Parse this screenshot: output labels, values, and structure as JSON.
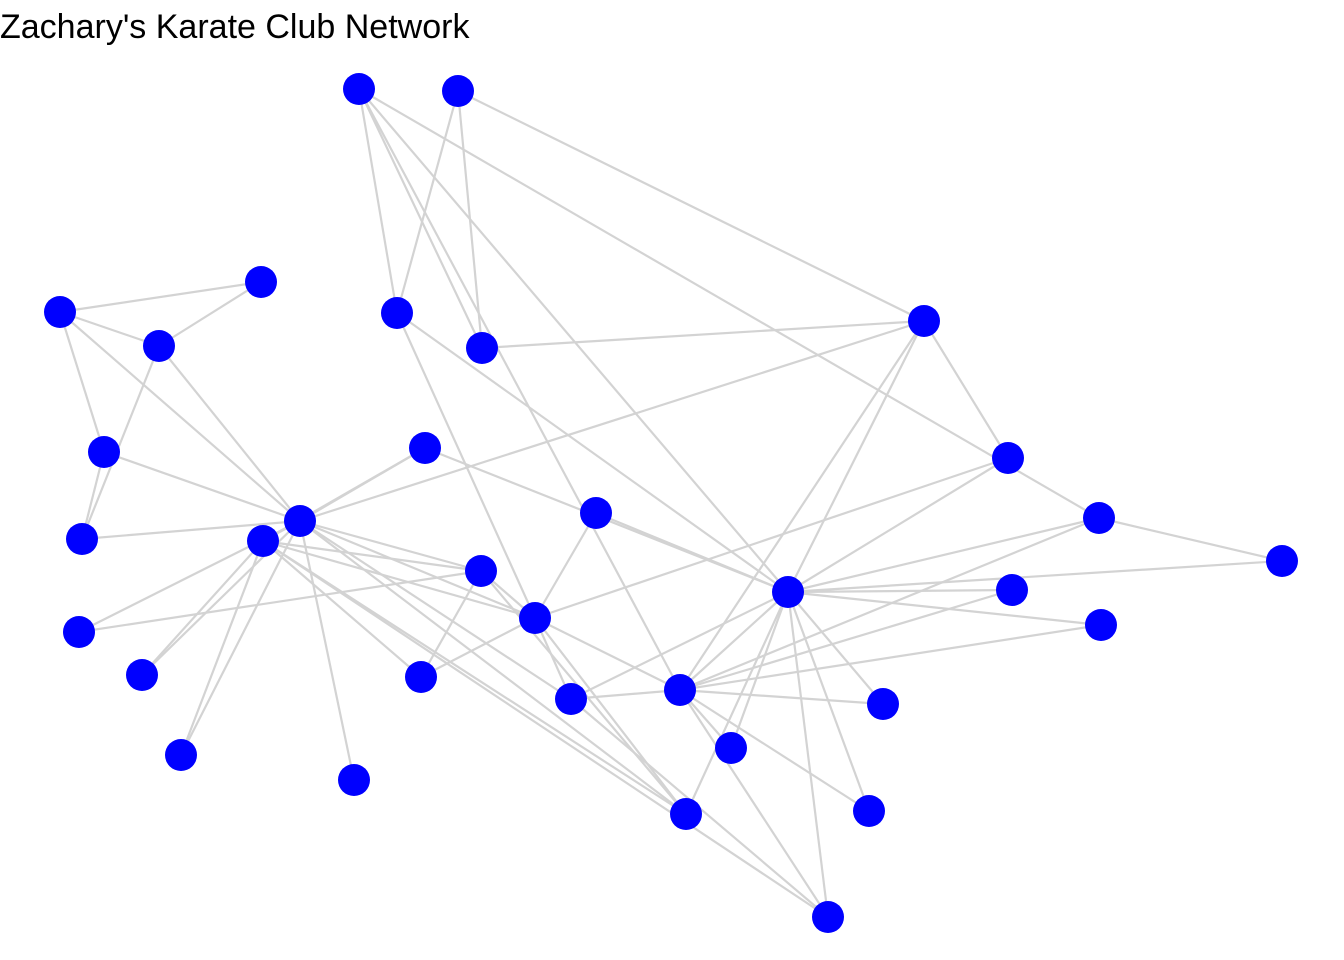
{
  "title": "Zachary's Karate Club Network",
  "colors": {
    "node": "#0000ff",
    "edge": "#d3d3d3",
    "background": "#ffffff"
  },
  "graph": {
    "nodes": [
      "n1",
      "n2",
      "n3",
      "n4",
      "n5",
      "n6",
      "n7",
      "n8",
      "n9",
      "n10",
      "n11",
      "n12",
      "n13",
      "n14",
      "n15",
      "n16",
      "n17",
      "n18",
      "n19",
      "n20",
      "n21",
      "n22",
      "n23",
      "n24",
      "n25",
      "n26",
      "n27",
      "n28",
      "n29",
      "n30",
      "n31",
      "n32",
      "n33",
      "n34"
    ],
    "edges": [
      [
        "n1",
        "n2"
      ],
      [
        "n1",
        "n3"
      ],
      [
        "n1",
        "n4"
      ],
      [
        "n1",
        "n5"
      ],
      [
        "n1",
        "n6"
      ],
      [
        "n1",
        "n7"
      ],
      [
        "n1",
        "n9"
      ],
      [
        "n1",
        "n11"
      ],
      [
        "n1",
        "n12"
      ],
      [
        "n1",
        "n13"
      ],
      [
        "n1",
        "n14"
      ],
      [
        "n1",
        "n18"
      ],
      [
        "n1",
        "n20"
      ],
      [
        "n1",
        "n22"
      ],
      [
        "n1",
        "n32"
      ],
      [
        "n2",
        "n3"
      ],
      [
        "n2",
        "n4"
      ],
      [
        "n2",
        "n8"
      ],
      [
        "n2",
        "n14"
      ],
      [
        "n2",
        "n18"
      ],
      [
        "n2",
        "n20"
      ],
      [
        "n2",
        "n22"
      ],
      [
        "n2",
        "n31"
      ],
      [
        "n3",
        "n4"
      ],
      [
        "n3",
        "n8"
      ],
      [
        "n3",
        "n9"
      ],
      [
        "n3",
        "n10"
      ],
      [
        "n3",
        "n14"
      ],
      [
        "n3",
        "n28"
      ],
      [
        "n3",
        "n29"
      ],
      [
        "n3",
        "n33"
      ],
      [
        "n4",
        "n8"
      ],
      [
        "n4",
        "n13"
      ],
      [
        "n4",
        "n14"
      ],
      [
        "n5",
        "n7"
      ],
      [
        "n5",
        "n11"
      ],
      [
        "n6",
        "n7"
      ],
      [
        "n6",
        "n11"
      ],
      [
        "n6",
        "n17"
      ],
      [
        "n7",
        "n17"
      ],
      [
        "n9",
        "n31"
      ],
      [
        "n9",
        "n33"
      ],
      [
        "n9",
        "n34"
      ],
      [
        "n10",
        "n34"
      ],
      [
        "n14",
        "n34"
      ],
      [
        "n15",
        "n33"
      ],
      [
        "n15",
        "n34"
      ],
      [
        "n16",
        "n33"
      ],
      [
        "n16",
        "n34"
      ],
      [
        "n19",
        "n33"
      ],
      [
        "n19",
        "n34"
      ],
      [
        "n20",
        "n34"
      ],
      [
        "n21",
        "n33"
      ],
      [
        "n21",
        "n34"
      ],
      [
        "n23",
        "n33"
      ],
      [
        "n23",
        "n34"
      ],
      [
        "n24",
        "n26"
      ],
      [
        "n24",
        "n28"
      ],
      [
        "n24",
        "n30"
      ],
      [
        "n24",
        "n33"
      ],
      [
        "n24",
        "n34"
      ],
      [
        "n25",
        "n26"
      ],
      [
        "n25",
        "n28"
      ],
      [
        "n25",
        "n32"
      ],
      [
        "n26",
        "n32"
      ],
      [
        "n27",
        "n30"
      ],
      [
        "n27",
        "n34"
      ],
      [
        "n28",
        "n34"
      ],
      [
        "n29",
        "n32"
      ],
      [
        "n29",
        "n34"
      ],
      [
        "n30",
        "n33"
      ],
      [
        "n30",
        "n34"
      ],
      [
        "n31",
        "n33"
      ],
      [
        "n31",
        "n34"
      ],
      [
        "n32",
        "n33"
      ],
      [
        "n32",
        "n34"
      ],
      [
        "n33",
        "n34"
      ]
    ]
  }
}
